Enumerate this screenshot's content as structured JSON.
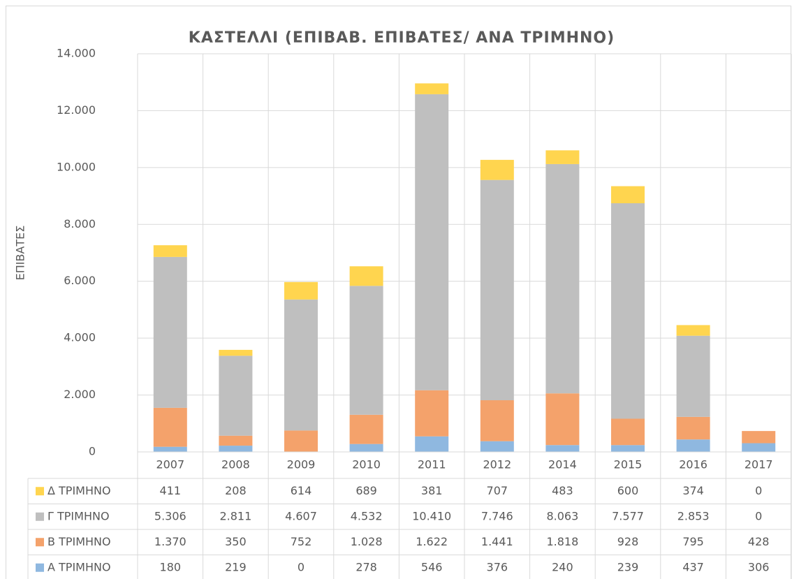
{
  "chart_data": {
    "type": "bar",
    "stacked": true,
    "title": "ΚΑΣΤΕΛΛΙ   (ΕΠΙΒΑΒ. ΕΠΙΒΑΤΕΣ/ ΑΝΑ ΤΡΙΜΗΝΟ)",
    "y_label": "ΕΠΙΒΑΤΕΣ",
    "categories": [
      "2007",
      "2008",
      "2009",
      "2010",
      "2011",
      "2012",
      "2014",
      "2015",
      "2016",
      "2017"
    ],
    "series": [
      {
        "name": "Α ΤΡΙΜΗΝΟ",
        "color": "#8fb8e0",
        "values": [
          180,
          219,
          0,
          278,
          546,
          376,
          240,
          239,
          437,
          306
        ]
      },
      {
        "name": "Β ΤΡΙΜΗΝΟ",
        "color": "#f4a26b",
        "values": [
          1370,
          350,
          752,
          1028,
          1622,
          1441,
          1818,
          928,
          795,
          428
        ],
        "value_labels": [
          "1.370",
          "350",
          "752",
          "1.028",
          "1.622",
          "1.441",
          "1.818",
          "928",
          "795",
          "428"
        ]
      },
      {
        "name": "Γ ΤΡΙΜΗΝΟ",
        "color": "#bfbfbf",
        "values": [
          5306,
          2811,
          4607,
          4532,
          10410,
          7746,
          8063,
          7577,
          2853,
          0
        ],
        "value_labels": [
          "5.306",
          "2.811",
          "4.607",
          "4.532",
          "10.410",
          "7.746",
          "8.063",
          "7.577",
          "2.853",
          "0"
        ]
      },
      {
        "name": "Δ ΤΡΙΜΗΝΟ",
        "color": "#ffd54f",
        "values": [
          411,
          208,
          614,
          689,
          381,
          707,
          483,
          600,
          374,
          0
        ]
      }
    ],
    "ylim": [
      0,
      14000
    ],
    "yticks": [
      0,
      {
        "value": 2000,
        "label": "2.000"
      },
      {
        "value": 4000,
        "label": "4.000"
      },
      {
        "value": 6000,
        "label": "6.000"
      },
      {
        "value": 8000,
        "label": "8.000"
      },
      {
        "value": 10000,
        "label": "10.000"
      },
      {
        "value": 12000,
        "label": "12.000"
      },
      {
        "value": 14000,
        "label": "14.000"
      }
    ],
    "grid": true,
    "data_table": true
  }
}
